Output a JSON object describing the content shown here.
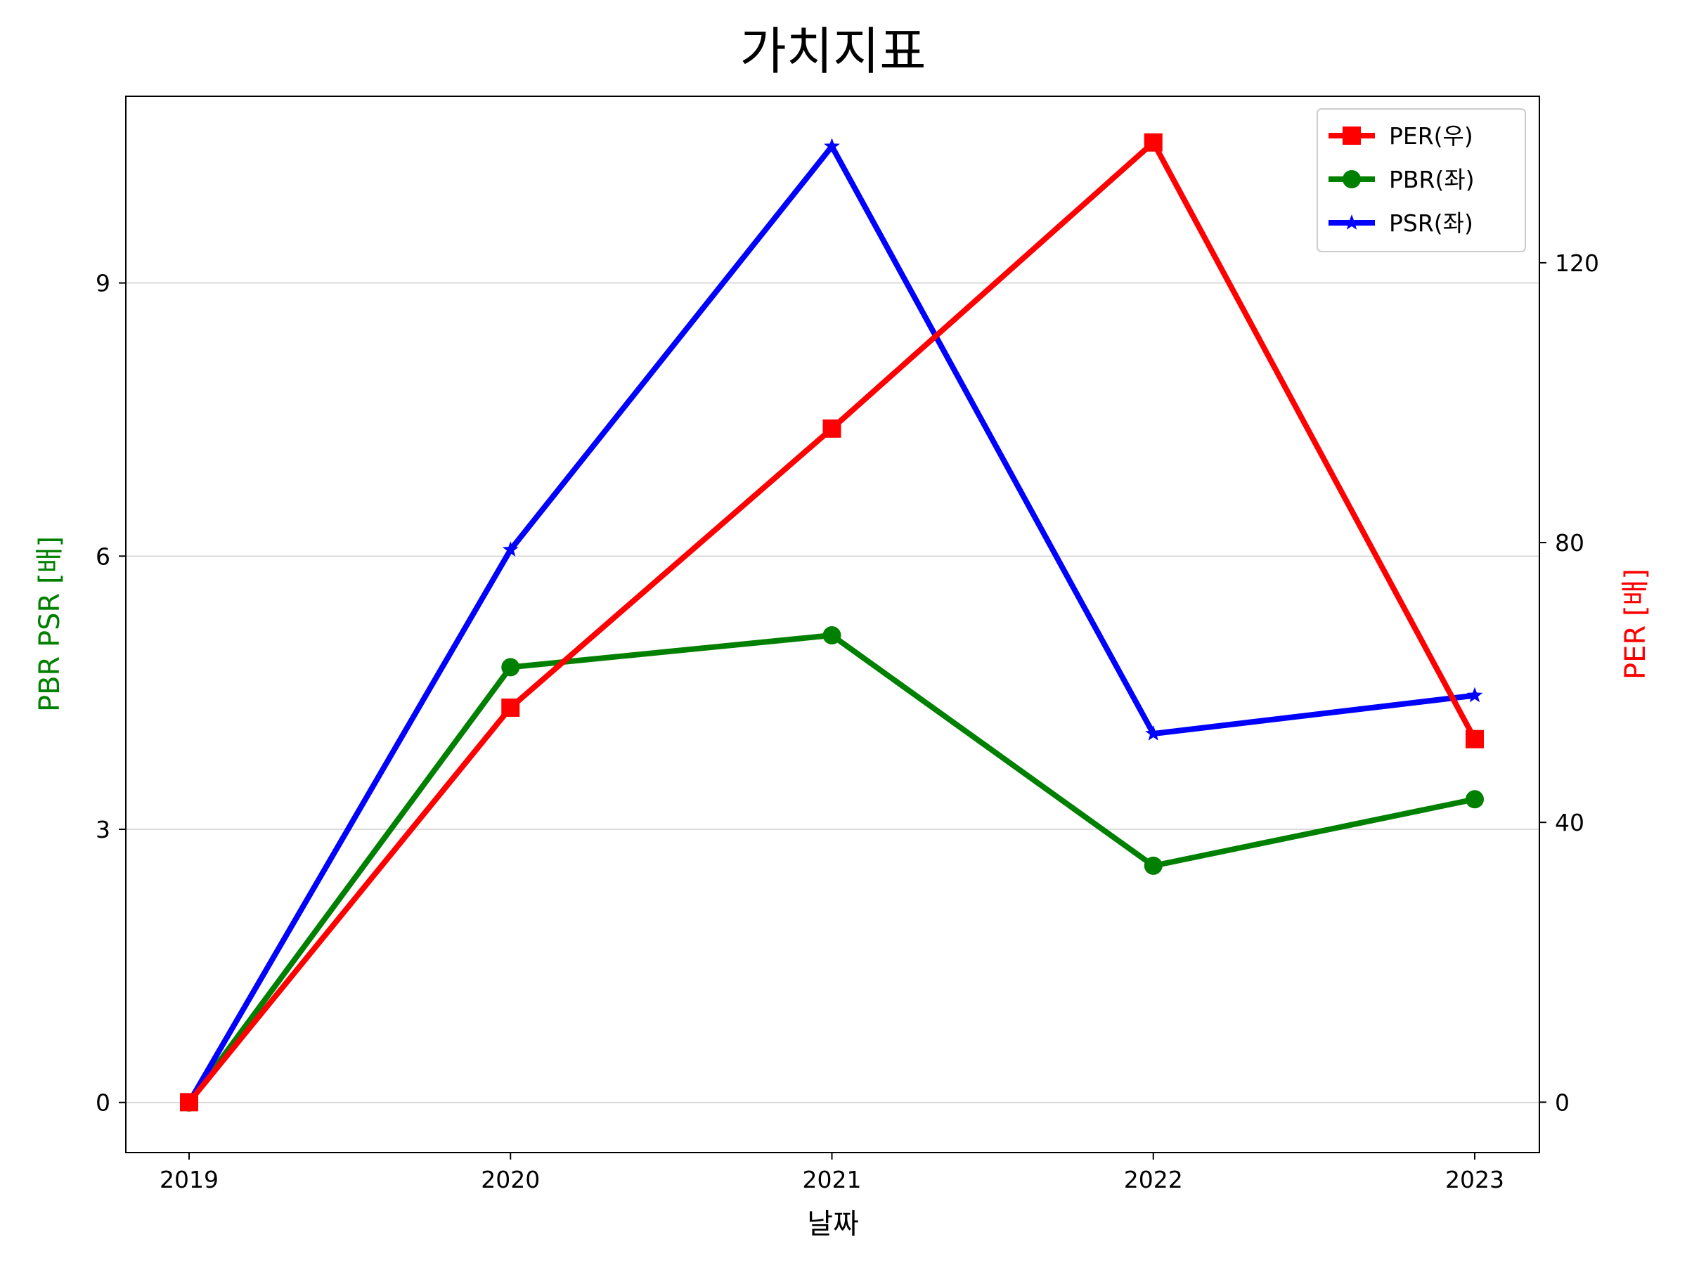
{
  "chart_data": {
    "type": "line",
    "title": "가치지표",
    "xlabel": "날짜",
    "ylabel_left": "PBR PSR [배]",
    "ylabel_right": "PER [배]",
    "categories": [
      "2019",
      "2020",
      "2021",
      "2022",
      "2023"
    ],
    "y_left": {
      "ticks": [
        0,
        3,
        6,
        9
      ],
      "ylim": [
        -0.55,
        11.05
      ]
    },
    "y_right": {
      "ticks": [
        0,
        40,
        80,
        120
      ],
      "ylim": [
        -7.2,
        143.8
      ]
    },
    "grid": "horizontal (left axis)",
    "legend_position": "top-right",
    "colors": {
      "left_label": "#008000",
      "right_label": "#ff0000"
    },
    "series": [
      {
        "name": "PER(우)",
        "axis": "right",
        "color": "#ff0000",
        "marker": "square",
        "values": [
          0,
          56.4,
          96.3,
          137.2,
          51.9
        ]
      },
      {
        "name": "PBR(좌)",
        "axis": "left",
        "color": "#008000",
        "marker": "circle",
        "values": [
          0,
          4.78,
          5.13,
          2.6,
          3.33
        ]
      },
      {
        "name": "PSR(좌)",
        "axis": "left",
        "color": "#0000ff",
        "marker": "star",
        "values": [
          0,
          6.07,
          10.5,
          4.05,
          4.47
        ]
      }
    ]
  }
}
